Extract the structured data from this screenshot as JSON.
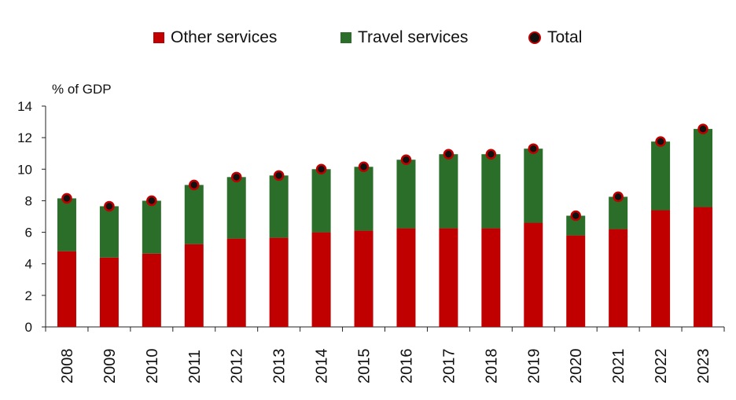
{
  "chart_data": {
    "type": "bar",
    "stacked": true,
    "ylabel": "% of GDP",
    "ylim": [
      0,
      14
    ],
    "yticks": [
      0,
      2,
      4,
      6,
      8,
      10,
      12,
      14
    ],
    "categories": [
      "2008",
      "2009",
      "2010",
      "2011",
      "2012",
      "2013",
      "2014",
      "2015",
      "2016",
      "2017",
      "2018",
      "2019",
      "2020",
      "2021",
      "2022",
      "2023"
    ],
    "series": [
      {
        "name": "Other services",
        "color": "#c00000",
        "values": [
          4.8,
          4.4,
          4.65,
          5.25,
          5.6,
          5.65,
          6.0,
          6.1,
          6.25,
          6.25,
          6.25,
          6.6,
          5.8,
          6.2,
          7.4,
          7.6
        ]
      },
      {
        "name": "Travel services",
        "color": "#2a6e2a",
        "values": [
          3.35,
          3.25,
          3.35,
          3.75,
          3.9,
          3.95,
          4.0,
          4.05,
          4.35,
          4.7,
          4.7,
          4.7,
          1.25,
          2.05,
          4.35,
          4.95
        ]
      }
    ],
    "total": {
      "name": "Total",
      "marker_fill": "#111111",
      "marker_edge": "#c00000",
      "values": [
        8.15,
        7.65,
        8.0,
        9.0,
        9.5,
        9.6,
        10.0,
        10.15,
        10.6,
        10.95,
        10.95,
        11.3,
        7.05,
        8.25,
        11.75,
        12.55
      ]
    },
    "legend": {
      "position": "top",
      "labels": [
        "Other services",
        "Travel services",
        "Total"
      ]
    },
    "grid": false
  }
}
